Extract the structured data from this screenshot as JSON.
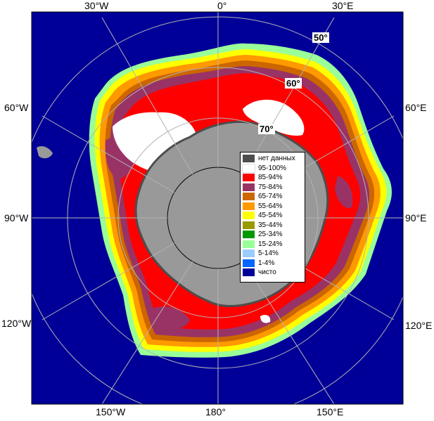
{
  "map": {
    "longitude_labels": {
      "top": [
        "30°W",
        "0°",
        "30°E"
      ],
      "left": [
        "60°W",
        "90°W",
        "120°W"
      ],
      "right": [
        "60°E",
        "90°E",
        "120°E"
      ],
      "bottom": [
        "150°W",
        "180°",
        "150°E"
      ]
    },
    "latitude_labels": [
      "50°",
      "60°",
      "70°"
    ]
  },
  "legend": {
    "items": [
      {
        "label": "нет данных",
        "color": "#4d4d4d"
      },
      {
        "label": "95-100%",
        "color": "#ffffff"
      },
      {
        "label": "85-94%",
        "color": "#ff0000"
      },
      {
        "label": "75-84%",
        "color": "#993366"
      },
      {
        "label": "65-74%",
        "color": "#cc6600"
      },
      {
        "label": "55-64%",
        "color": "#ff9900"
      },
      {
        "label": "45-54%",
        "color": "#ffff00"
      },
      {
        "label": "35-44%",
        "color": "#999900"
      },
      {
        "label": "25-34%",
        "color": "#009900"
      },
      {
        "label": "15-24%",
        "color": "#99ff99"
      },
      {
        "label": "5-14%",
        "color": "#99ccff"
      },
      {
        "label": "1-4%",
        "color": "#0066ff"
      },
      {
        "label": "чисто",
        "color": "#000099"
      }
    ]
  },
  "colors": {
    "ocean": "#000099",
    "land": "#999999",
    "nodata": "#4d4d4d",
    "grid": "#b3b3b3"
  }
}
